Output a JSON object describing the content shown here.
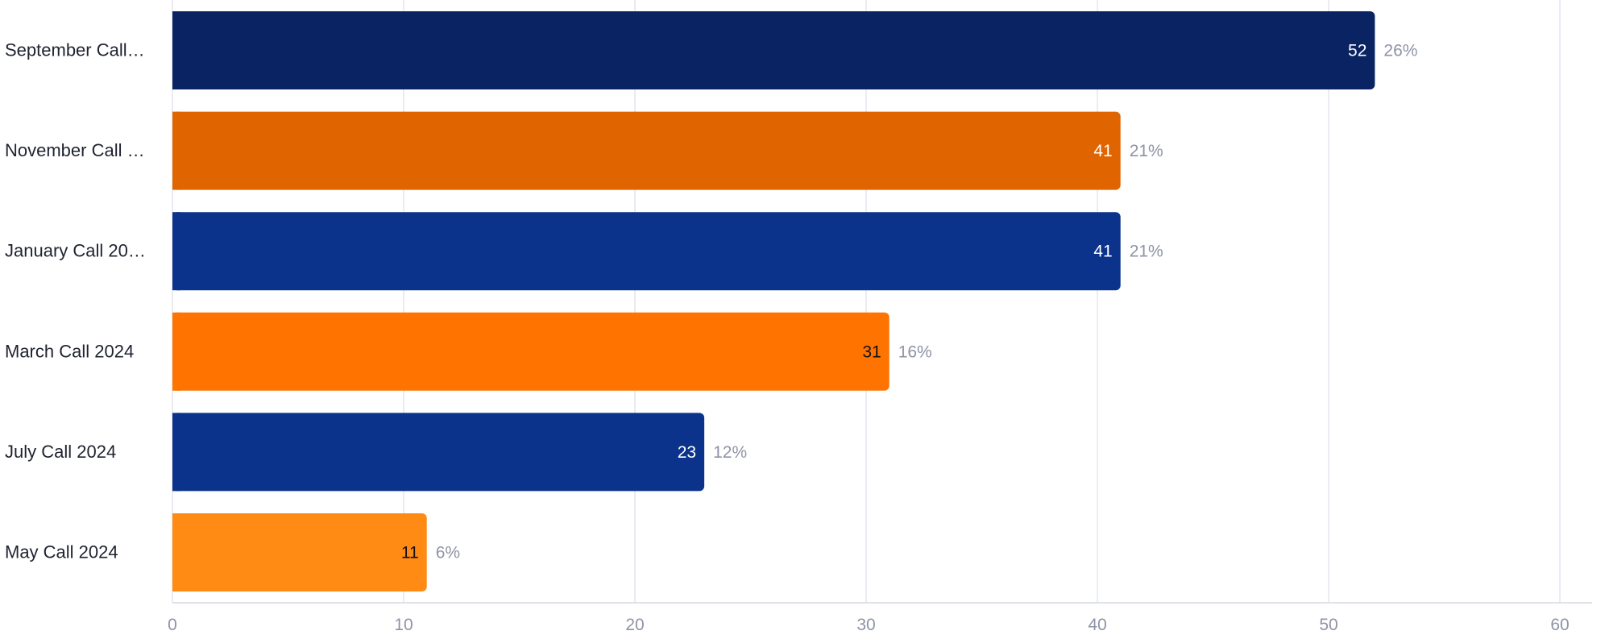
{
  "chart_data": {
    "type": "bar",
    "orientation": "horizontal",
    "categories": [
      "September Call…",
      "November Call …",
      "January Call 20…",
      "March Call 2024",
      "July Call 2024",
      "May Call 2024"
    ],
    "values": [
      52,
      41,
      41,
      31,
      23,
      11
    ],
    "percent_labels": [
      "26%",
      "21%",
      "21%",
      "16%",
      "12%",
      "6%"
    ],
    "bar_colors": [
      "#0a2463",
      "#e06500",
      "#0b338c",
      "#ff7300",
      "#0b338c",
      "#ff8a14"
    ],
    "value_label_colors": [
      "#ffffff",
      "#ffffff",
      "#ffffff",
      "#111111",
      "#ffffff",
      "#111111"
    ],
    "xlim": [
      0,
      60
    ],
    "x_ticks": [
      0,
      10,
      20,
      30,
      40,
      50,
      60
    ],
    "grid": true,
    "legend": "none",
    "title": "",
    "xlabel": "",
    "ylabel": ""
  }
}
